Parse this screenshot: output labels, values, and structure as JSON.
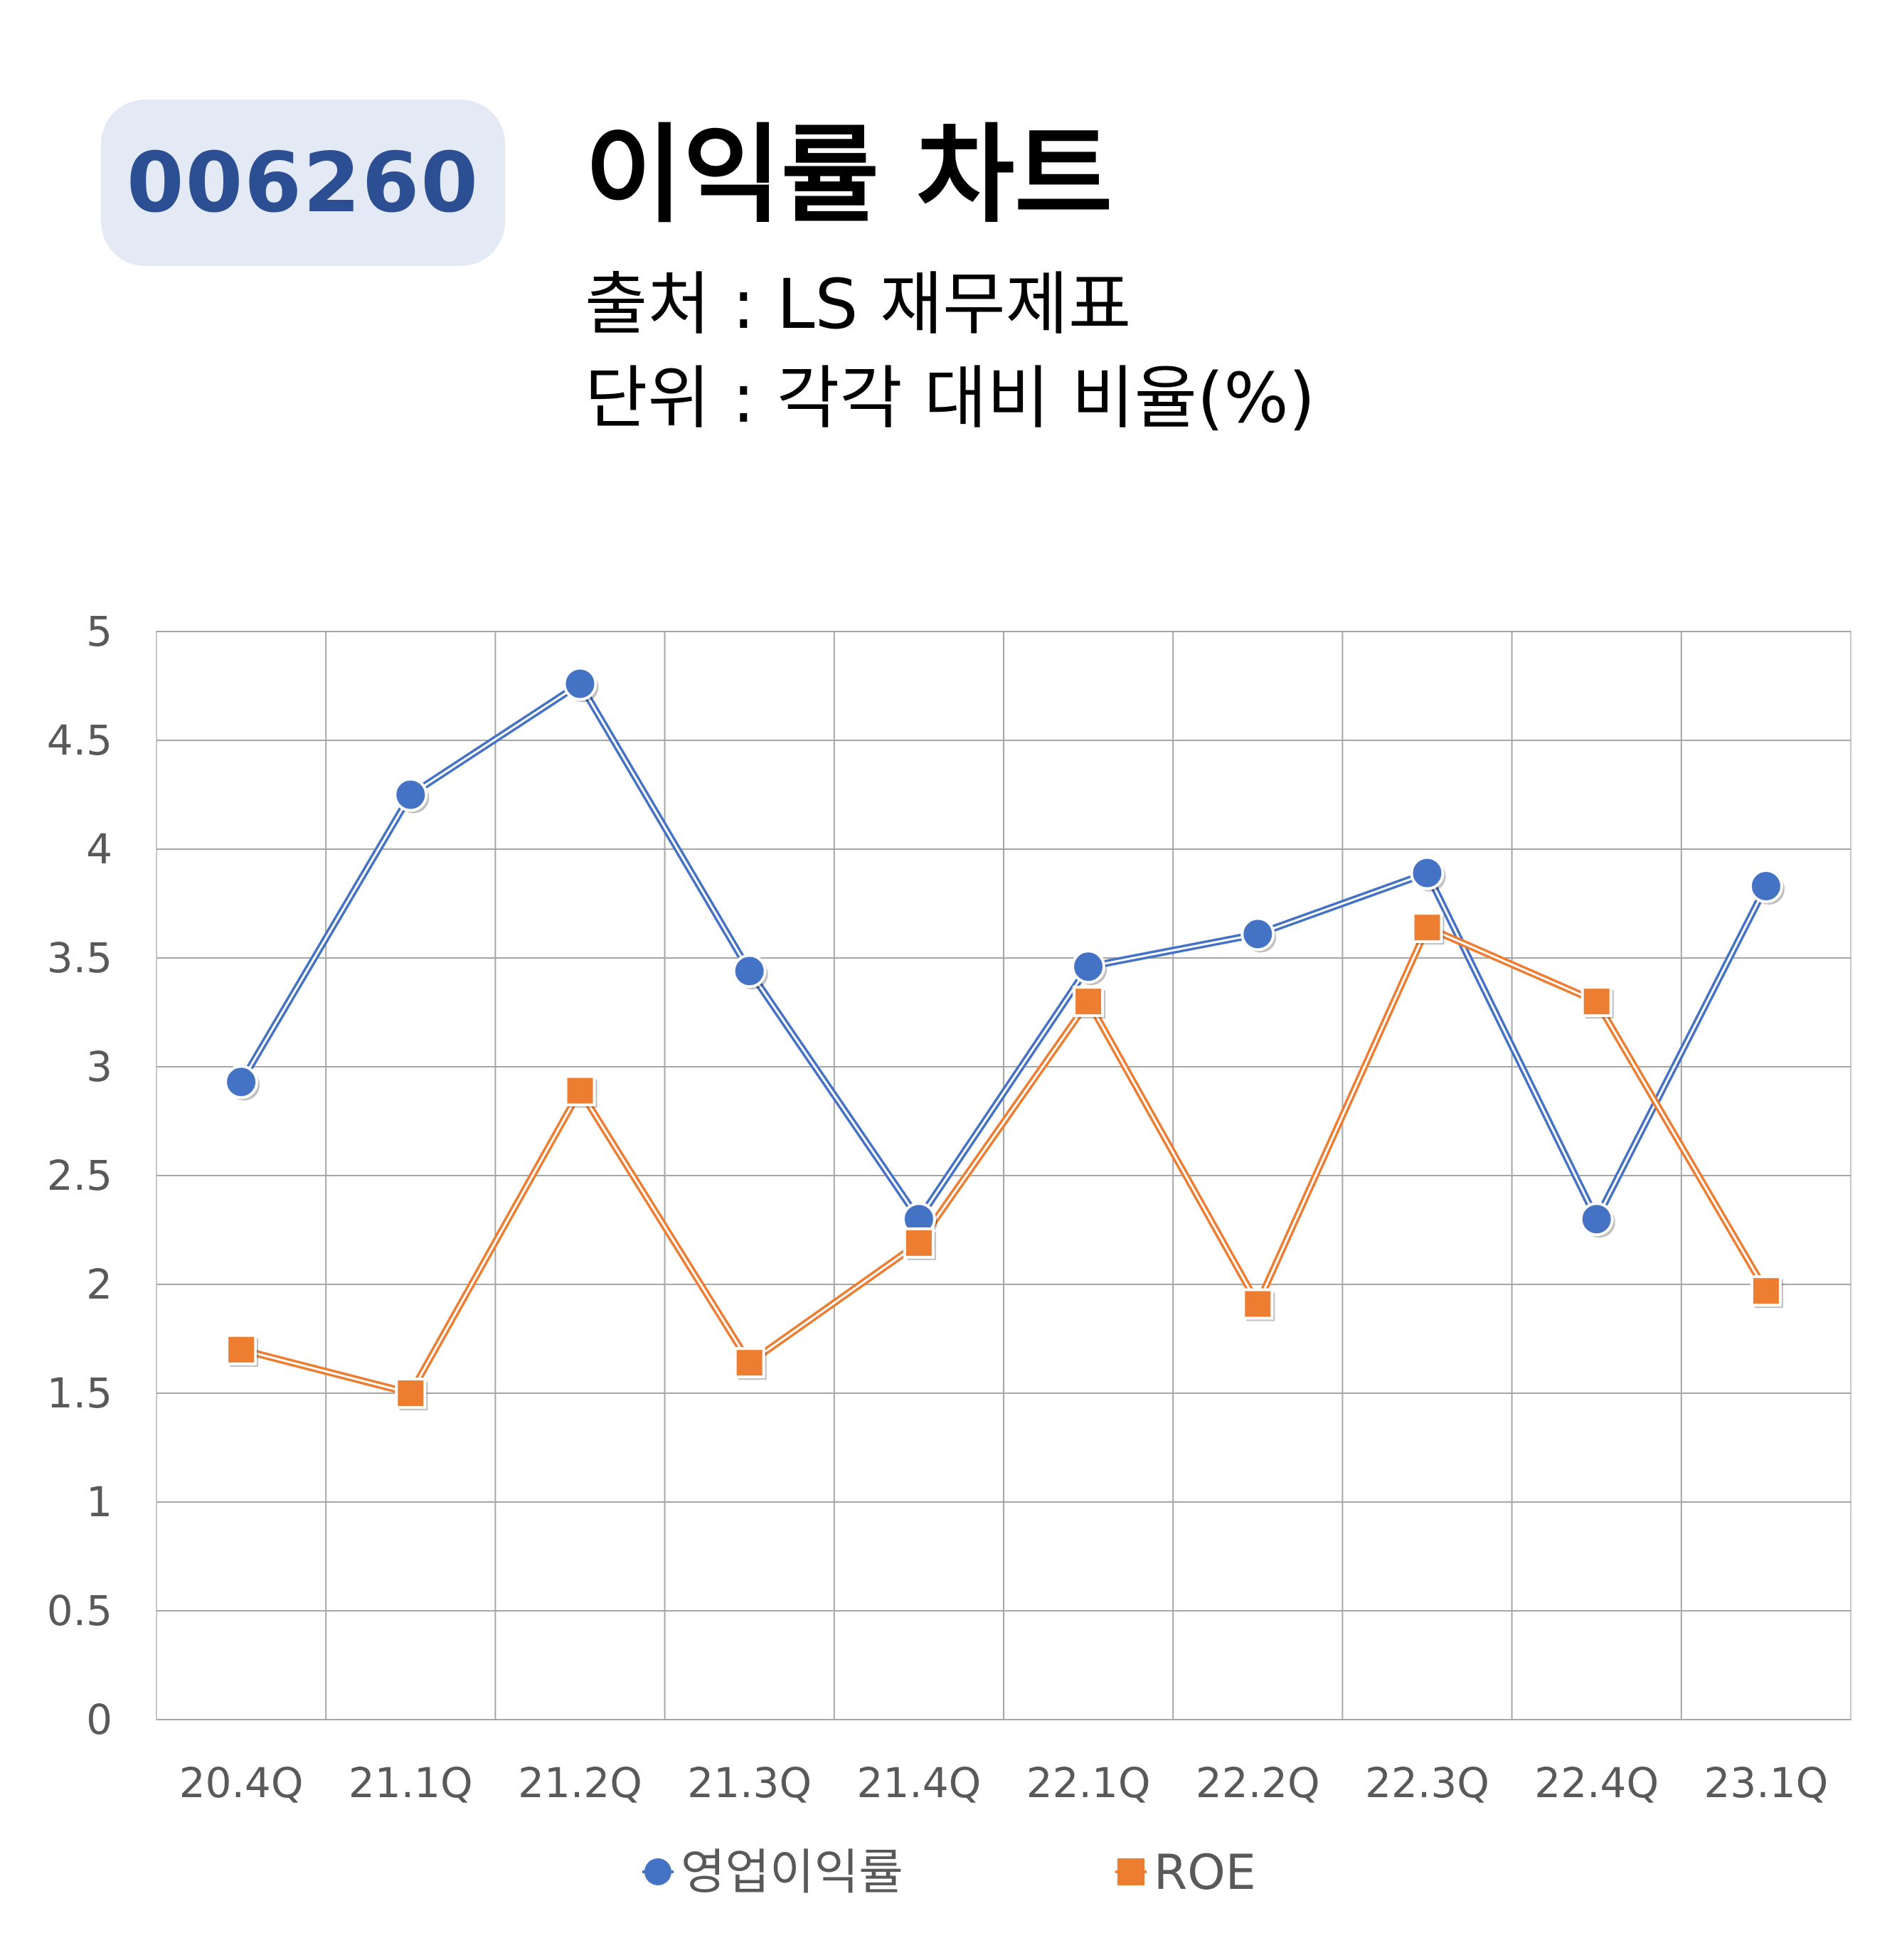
{
  "header": {
    "code": "006260",
    "title": "이익률 차트",
    "source": "출처 : LS 재무제표",
    "unit": "단위 : 각각 대비 비율(%)"
  },
  "chart_data": {
    "type": "line",
    "categories": [
      "20.4Q",
      "21.1Q",
      "21.2Q",
      "21.3Q",
      "21.4Q",
      "22.1Q",
      "22.2Q",
      "22.3Q",
      "22.4Q",
      "23.1Q"
    ],
    "series": [
      {
        "name": "영업이익률",
        "color": "#4472c4",
        "marker": "circle",
        "values": [
          2.93,
          4.25,
          4.76,
          3.44,
          2.3,
          3.46,
          3.61,
          3.89,
          2.3,
          3.83
        ]
      },
      {
        "name": "ROE",
        "color": "#ed7d31",
        "marker": "square",
        "values": [
          1.7,
          1.5,
          2.89,
          1.64,
          2.19,
          3.3,
          1.91,
          3.64,
          3.3,
          1.97
        ]
      }
    ],
    "y_ticks": [
      "0",
      "0.5",
      "1",
      "1.5",
      "2",
      "2.5",
      "3",
      "3.5",
      "4",
      "4.5",
      "5"
    ],
    "ylim": [
      0,
      5
    ],
    "grid": true,
    "legend": "bottom"
  }
}
